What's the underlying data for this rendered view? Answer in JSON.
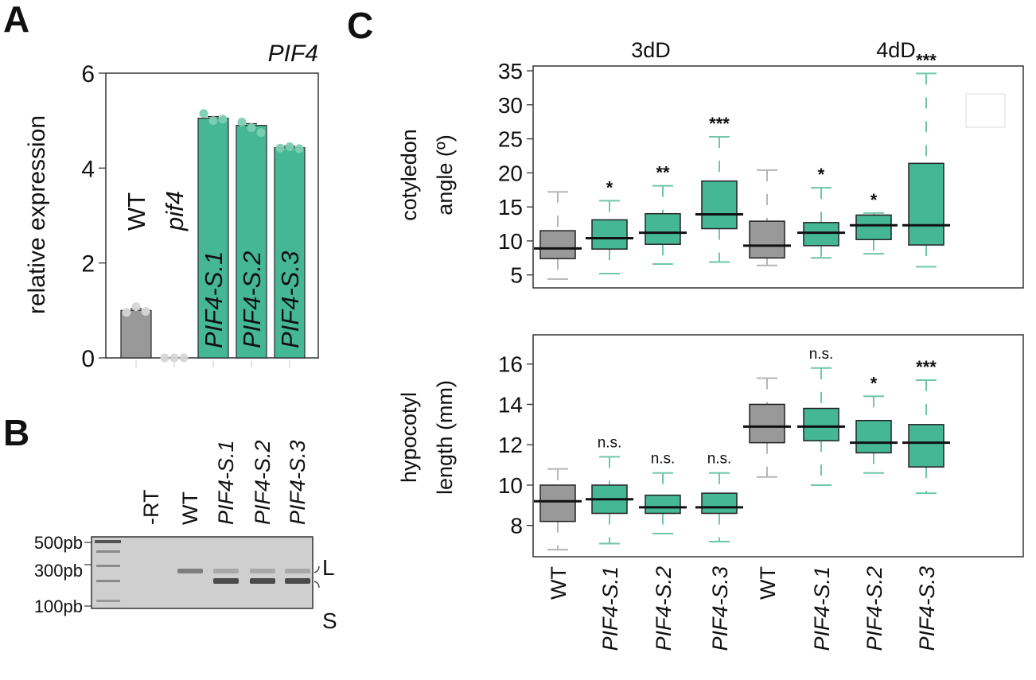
{
  "colors": {
    "teal": "#45b795",
    "teal_whisker": "#6fc6aa",
    "gray": "#999999",
    "gray_whisker": "#b5b5b5",
    "dot_gray": "#d6d6d6",
    "dot_teal": "#7cceb2",
    "gel_bg": "#cfcfcf"
  },
  "panel_labels": {
    "a": "A",
    "b": "B",
    "c": "C"
  },
  "chart_data": [
    {
      "id": "A",
      "type": "bar",
      "title": "PIF4",
      "ylabel": "relative expression",
      "xlabel": "",
      "ylim": [
        0,
        6
      ],
      "yticks": [
        0,
        2,
        4,
        6
      ],
      "categories": [
        "WT",
        "pif4",
        "PIF4-S.1",
        "PIF4-S.2",
        "PIF4-S.3"
      ],
      "category_italic": [
        false,
        true,
        true,
        true,
        true
      ],
      "values": [
        1.0,
        0.0,
        5.05,
        4.9,
        4.43
      ],
      "points": [
        [
          0.96,
          1.08,
          0.98
        ],
        [
          0.0,
          0.0,
          0.0
        ],
        [
          5.15,
          5.0,
          5.03
        ],
        [
          4.97,
          4.85,
          4.75
        ],
        [
          4.42,
          4.45,
          4.41
        ]
      ],
      "bar_colors": [
        "gray",
        "gray",
        "teal",
        "teal",
        "teal"
      ],
      "grid": false
    },
    {
      "id": "B",
      "type": "table",
      "title": "",
      "lanes": [
        "-RT",
        "WT",
        "PIF4-S.1",
        "PIF4-S.2",
        "PIF4-S.3"
      ],
      "lane_italic": [
        false,
        false,
        true,
        true,
        true
      ],
      "ladder_labels": [
        "500pb",
        "300pb",
        "100pb"
      ],
      "band_labels": [
        "L",
        "S"
      ],
      "bands": {
        "-RT": [],
        "WT": [
          "L"
        ],
        "PIF4-S.1": [
          "L",
          "S"
        ],
        "PIF4-S.2": [
          "L",
          "S"
        ],
        "PIF4-S.3": [
          "L",
          "S"
        ]
      }
    },
    {
      "id": "C-top",
      "type": "box",
      "groups": [
        "3dD",
        "4dD"
      ],
      "ylabel": [
        "cotyledon",
        "angle (º)"
      ],
      "ylim": [
        4,
        36
      ],
      "yticks": [
        5,
        10,
        15,
        20,
        25,
        30,
        35
      ],
      "categories": [
        "WT",
        "PIF4-S.1",
        "PIF4-S.2",
        "PIF4-S.3",
        "WT",
        "PIF4-S.1",
        "PIF4-S.2",
        "PIF4-S.3"
      ],
      "colors": [
        "gray",
        "teal",
        "teal",
        "teal",
        "gray",
        "teal",
        "teal",
        "teal"
      ],
      "boxes": [
        {
          "whisker_low": 4.4,
          "q1": 7.4,
          "median": 8.9,
          "q3": 11.5,
          "whisker_high": 17.2,
          "sig": ""
        },
        {
          "whisker_low": 5.2,
          "q1": 8.8,
          "median": 10.4,
          "q3": 13.1,
          "whisker_high": 15.9,
          "sig": "*"
        },
        {
          "whisker_low": 6.6,
          "q1": 9.5,
          "median": 11.2,
          "q3": 14.0,
          "whisker_high": 18.1,
          "sig": "**"
        },
        {
          "whisker_low": 6.9,
          "q1": 11.8,
          "median": 13.9,
          "q3": 18.8,
          "whisker_high": 25.3,
          "sig": "***"
        },
        {
          "whisker_low": 6.4,
          "q1": 7.5,
          "median": 9.3,
          "q3": 12.9,
          "whisker_high": 20.4,
          "sig": ""
        },
        {
          "whisker_low": 7.5,
          "q1": 9.3,
          "median": 11.2,
          "q3": 12.7,
          "whisker_high": 17.8,
          "sig": "*"
        },
        {
          "whisker_low": 8.1,
          "q1": 10.2,
          "median": 12.3,
          "q3": 13.8,
          "whisker_high": 14.1,
          "sig": "*"
        },
        {
          "whisker_low": 6.2,
          "q1": 9.4,
          "median": 12.3,
          "q3": 21.4,
          "whisker_high": 34.6,
          "sig": "***"
        }
      ]
    },
    {
      "id": "C-bottom",
      "type": "box",
      "ylabel": [
        "hypocotyl",
        "length (mm)"
      ],
      "ylim": [
        6.7,
        17.3
      ],
      "yticks": [
        8,
        10,
        12,
        14,
        16
      ],
      "categories": [
        "WT",
        "PIF4-S.1",
        "PIF4-S.2",
        "PIF4-S.3",
        "WT",
        "PIF4-S.1",
        "PIF4-S.2",
        "PIF4-S.3"
      ],
      "category_italic": [
        false,
        true,
        true,
        true,
        false,
        true,
        true,
        true
      ],
      "colors": [
        "gray",
        "teal",
        "teal",
        "teal",
        "gray",
        "teal",
        "teal",
        "teal"
      ],
      "boxes": [
        {
          "whisker_low": 6.8,
          "q1": 8.2,
          "median": 9.2,
          "q3": 10.0,
          "whisker_high": 10.8,
          "sig": ""
        },
        {
          "whisker_low": 7.1,
          "q1": 8.6,
          "median": 9.3,
          "q3": 10.0,
          "whisker_high": 11.4,
          "sig": "n.s."
        },
        {
          "whisker_low": 7.6,
          "q1": 8.6,
          "median": 8.9,
          "q3": 9.5,
          "whisker_high": 10.6,
          "sig": "n.s."
        },
        {
          "whisker_low": 7.2,
          "q1": 8.6,
          "median": 8.9,
          "q3": 9.6,
          "whisker_high": 10.6,
          "sig": "n.s."
        },
        {
          "whisker_low": 10.4,
          "q1": 12.1,
          "median": 12.9,
          "q3": 14.0,
          "whisker_high": 15.3,
          "sig": ""
        },
        {
          "whisker_low": 10.0,
          "q1": 12.2,
          "median": 12.9,
          "q3": 13.8,
          "whisker_high": 15.8,
          "sig": "n.s."
        },
        {
          "whisker_low": 10.6,
          "q1": 11.6,
          "median": 12.1,
          "q3": 13.2,
          "whisker_high": 14.4,
          "sig": "*"
        },
        {
          "whisker_low": 9.6,
          "q1": 10.9,
          "median": 12.1,
          "q3": 13.0,
          "whisker_high": 15.2,
          "sig": "***"
        }
      ]
    }
  ]
}
